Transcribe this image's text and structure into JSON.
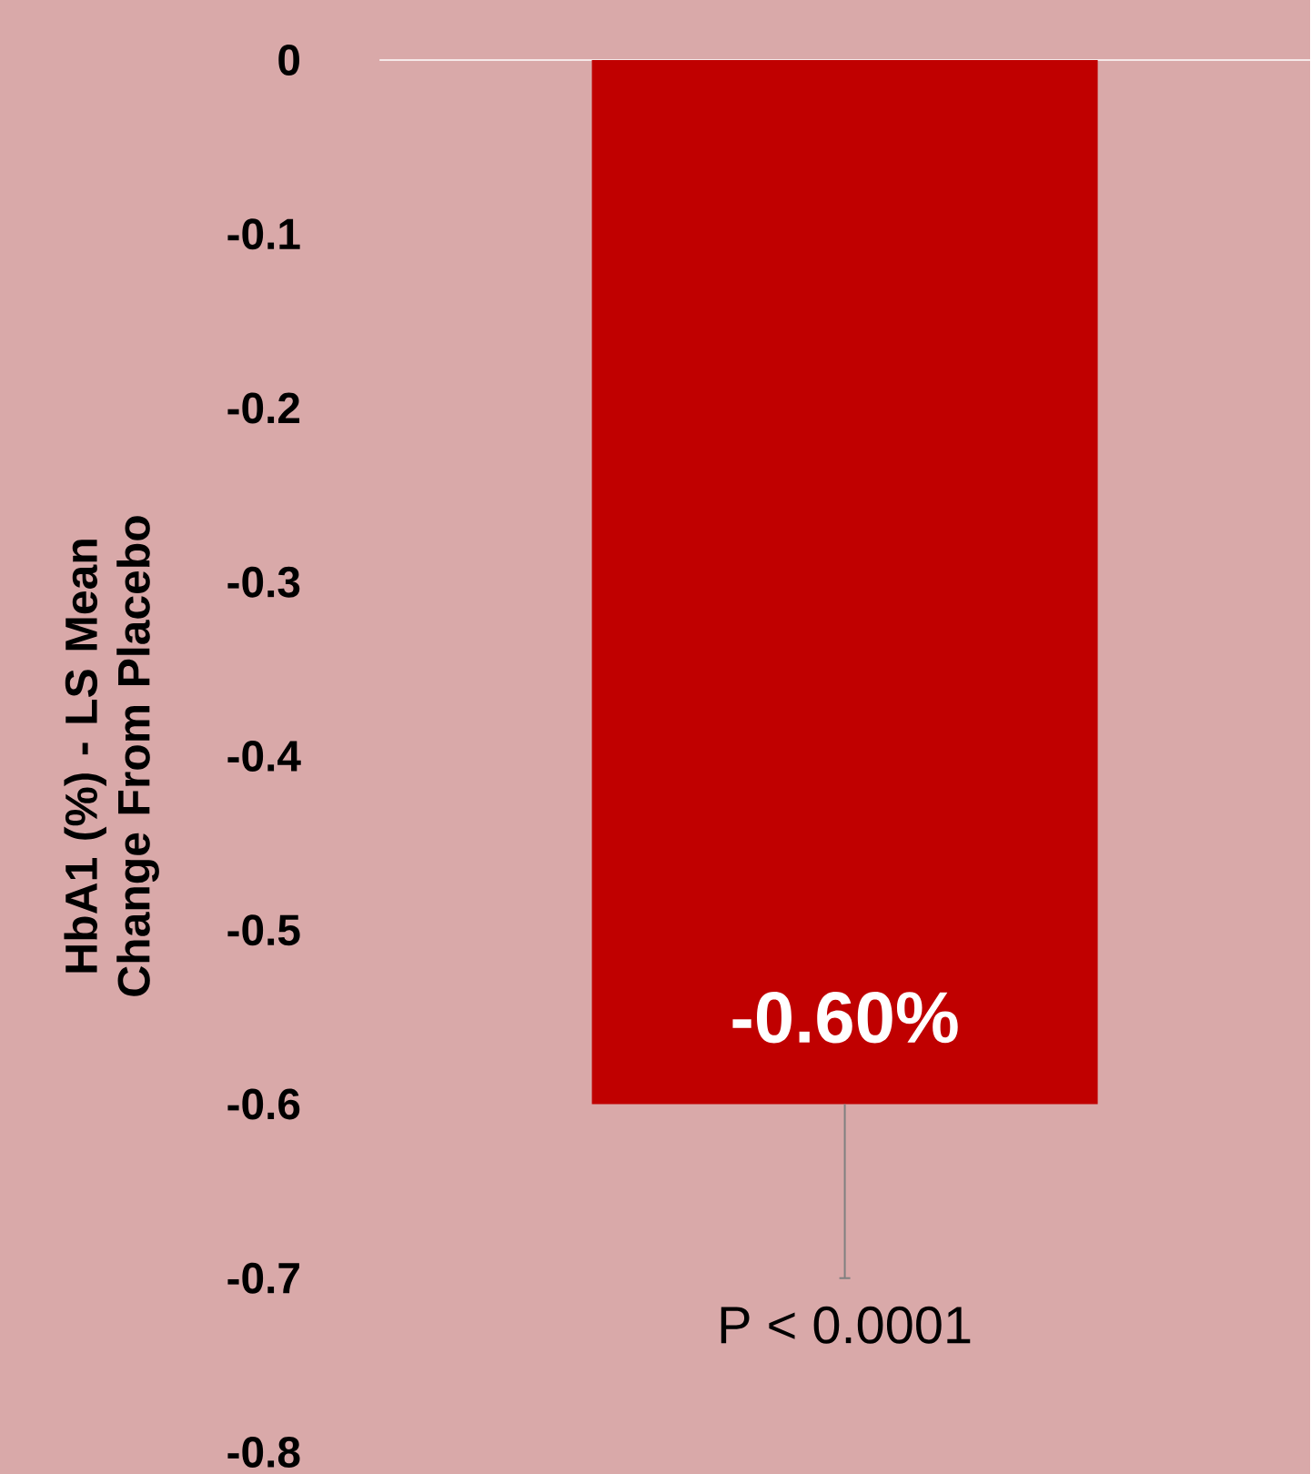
{
  "chart_data": {
    "type": "bar",
    "ylabel": "HbA1 (%) - LS Mean Change From Placebo",
    "categories": [
      null
    ],
    "values": [
      -0.6
    ],
    "errors": [
      [
        -0.7,
        -0.6
      ]
    ],
    "value_labels": [
      "-0.60%"
    ],
    "color": "#c00000",
    "ylim": [
      -0.8,
      0
    ],
    "yticks": [
      0,
      -0.1,
      -0.2,
      -0.3,
      -0.4,
      -0.5,
      -0.6,
      -0.7,
      -0.8
    ],
    "annotations": [
      "P < 0.0001"
    ],
    "grid": false
  }
}
